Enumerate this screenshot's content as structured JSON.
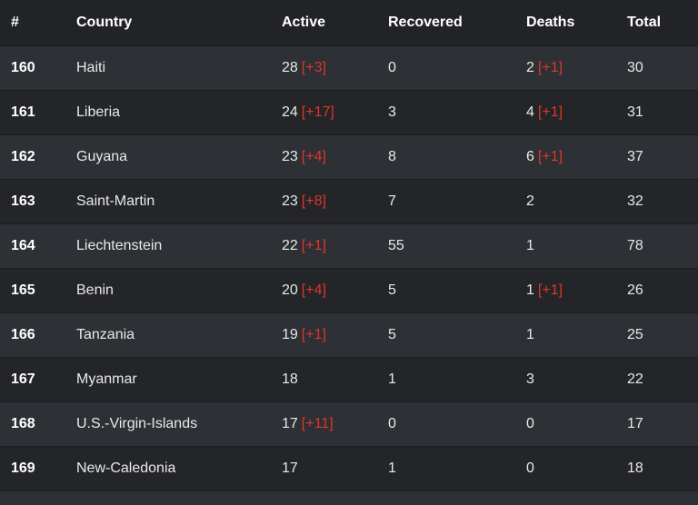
{
  "headers": {
    "rank": "#",
    "country": "Country",
    "active": "Active",
    "recovered": "Recovered",
    "deaths": "Deaths",
    "total": "Total"
  },
  "colors": {
    "header_bg": "#212327",
    "row_bg_a": "#2d3035",
    "row_bg_b": "#232529",
    "delta_red": "#e0352b",
    "text": "#e9e9e9"
  },
  "rows": [
    {
      "rank": "160",
      "country": "Haiti",
      "active": "28",
      "active_delta": "[+3]",
      "recovered": "0",
      "deaths": "2",
      "deaths_delta": "[+1]",
      "total": "30"
    },
    {
      "rank": "161",
      "country": "Liberia",
      "active": "24",
      "active_delta": "[+17]",
      "recovered": "3",
      "deaths": "4",
      "deaths_delta": "[+1]",
      "total": "31"
    },
    {
      "rank": "162",
      "country": "Guyana",
      "active": "23",
      "active_delta": "[+4]",
      "recovered": "8",
      "deaths": "6",
      "deaths_delta": "[+1]",
      "total": "37"
    },
    {
      "rank": "163",
      "country": "Saint-Martin",
      "active": "23",
      "active_delta": "[+8]",
      "recovered": "7",
      "deaths": "2",
      "deaths_delta": "",
      "total": "32"
    },
    {
      "rank": "164",
      "country": "Liechtenstein",
      "active": "22",
      "active_delta": "[+1]",
      "recovered": "55",
      "deaths": "1",
      "deaths_delta": "",
      "total": "78"
    },
    {
      "rank": "165",
      "country": "Benin",
      "active": "20",
      "active_delta": "[+4]",
      "recovered": "5",
      "deaths": "1",
      "deaths_delta": "[+1]",
      "total": "26"
    },
    {
      "rank": "166",
      "country": "Tanzania",
      "active": "19",
      "active_delta": "[+1]",
      "recovered": "5",
      "deaths": "1",
      "deaths_delta": "",
      "total": "25"
    },
    {
      "rank": "167",
      "country": "Myanmar",
      "active": "18",
      "active_delta": "",
      "recovered": "1",
      "deaths": "3",
      "deaths_delta": "",
      "total": "22"
    },
    {
      "rank": "168",
      "country": "U.S.-Virgin-Islands",
      "active": "17",
      "active_delta": "[+11]",
      "recovered": "0",
      "deaths": "0",
      "deaths_delta": "",
      "total": "17"
    },
    {
      "rank": "169",
      "country": "New-Caledonia",
      "active": "17",
      "active_delta": "",
      "recovered": "1",
      "deaths": "0",
      "deaths_delta": "",
      "total": "18"
    }
  ]
}
